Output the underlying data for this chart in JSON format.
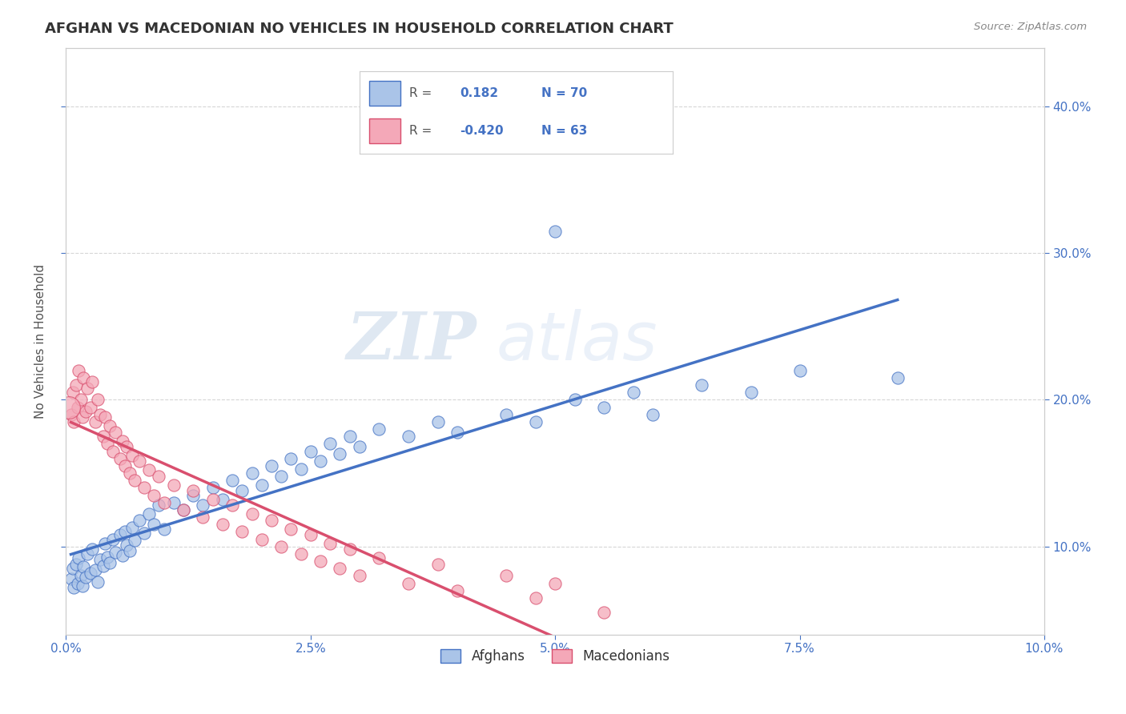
{
  "title": "AFGHAN VS MACEDONIAN NO VEHICLES IN HOUSEHOLD CORRELATION CHART",
  "source": "Source: ZipAtlas.com",
  "ylabel": "No Vehicles in Household",
  "xlim": [
    0.0,
    10.0
  ],
  "ylim": [
    4.0,
    44.0
  ],
  "afghan_color": "#aac4e8",
  "macedonian_color": "#f4a8b8",
  "afghan_line_color": "#4472c4",
  "macedonian_line_color": "#d94f6e",
  "legend_afghan_R": "0.182",
  "legend_afghan_N": "70",
  "legend_macedonian_R": "-0.420",
  "legend_macedonian_N": "63",
  "watermark_zip": "ZIP",
  "watermark_atlas": "atlas",
  "right_yticks": [
    10.0,
    20.0,
    30.0,
    40.0
  ],
  "afghan_data": [
    [
      0.05,
      7.8
    ],
    [
      0.07,
      8.5
    ],
    [
      0.08,
      7.2
    ],
    [
      0.1,
      8.8
    ],
    [
      0.12,
      7.5
    ],
    [
      0.13,
      9.2
    ],
    [
      0.15,
      8.0
    ],
    [
      0.17,
      7.3
    ],
    [
      0.18,
      8.6
    ],
    [
      0.2,
      7.9
    ],
    [
      0.22,
      9.5
    ],
    [
      0.25,
      8.2
    ],
    [
      0.27,
      9.8
    ],
    [
      0.3,
      8.4
    ],
    [
      0.32,
      7.6
    ],
    [
      0.35,
      9.1
    ],
    [
      0.38,
      8.7
    ],
    [
      0.4,
      10.2
    ],
    [
      0.42,
      9.3
    ],
    [
      0.45,
      8.9
    ],
    [
      0.48,
      10.5
    ],
    [
      0.5,
      9.6
    ],
    [
      0.55,
      10.8
    ],
    [
      0.58,
      9.4
    ],
    [
      0.6,
      11.0
    ],
    [
      0.62,
      10.1
    ],
    [
      0.65,
      9.7
    ],
    [
      0.68,
      11.3
    ],
    [
      0.7,
      10.4
    ],
    [
      0.75,
      11.8
    ],
    [
      0.8,
      10.9
    ],
    [
      0.85,
      12.2
    ],
    [
      0.9,
      11.5
    ],
    [
      0.95,
      12.8
    ],
    [
      1.0,
      11.2
    ],
    [
      1.1,
      13.0
    ],
    [
      1.2,
      12.5
    ],
    [
      1.3,
      13.5
    ],
    [
      1.4,
      12.8
    ],
    [
      1.5,
      14.0
    ],
    [
      1.6,
      13.2
    ],
    [
      1.7,
      14.5
    ],
    [
      1.8,
      13.8
    ],
    [
      1.9,
      15.0
    ],
    [
      2.0,
      14.2
    ],
    [
      2.1,
      15.5
    ],
    [
      2.2,
      14.8
    ],
    [
      2.3,
      16.0
    ],
    [
      2.4,
      15.3
    ],
    [
      2.5,
      16.5
    ],
    [
      2.6,
      15.8
    ],
    [
      2.7,
      17.0
    ],
    [
      2.8,
      16.3
    ],
    [
      2.9,
      17.5
    ],
    [
      3.0,
      16.8
    ],
    [
      3.2,
      18.0
    ],
    [
      3.5,
      17.5
    ],
    [
      3.8,
      18.5
    ],
    [
      4.0,
      17.8
    ],
    [
      5.0,
      31.5
    ],
    [
      4.5,
      19.0
    ],
    [
      4.8,
      18.5
    ],
    [
      5.2,
      20.0
    ],
    [
      5.5,
      19.5
    ],
    [
      5.8,
      20.5
    ],
    [
      6.0,
      19.0
    ],
    [
      6.5,
      21.0
    ],
    [
      7.0,
      20.5
    ],
    [
      7.5,
      22.0
    ],
    [
      8.5,
      21.5
    ]
  ],
  "macedonian_data": [
    [
      0.05,
      19.0
    ],
    [
      0.07,
      20.5
    ],
    [
      0.08,
      18.5
    ],
    [
      0.1,
      21.0
    ],
    [
      0.12,
      19.5
    ],
    [
      0.13,
      22.0
    ],
    [
      0.15,
      20.0
    ],
    [
      0.17,
      18.8
    ],
    [
      0.18,
      21.5
    ],
    [
      0.2,
      19.2
    ],
    [
      0.22,
      20.8
    ],
    [
      0.25,
      19.5
    ],
    [
      0.27,
      21.2
    ],
    [
      0.3,
      18.5
    ],
    [
      0.32,
      20.0
    ],
    [
      0.35,
      19.0
    ],
    [
      0.38,
      17.5
    ],
    [
      0.4,
      18.8
    ],
    [
      0.42,
      17.0
    ],
    [
      0.45,
      18.2
    ],
    [
      0.48,
      16.5
    ],
    [
      0.5,
      17.8
    ],
    [
      0.55,
      16.0
    ],
    [
      0.58,
      17.2
    ],
    [
      0.6,
      15.5
    ],
    [
      0.62,
      16.8
    ],
    [
      0.65,
      15.0
    ],
    [
      0.68,
      16.2
    ],
    [
      0.7,
      14.5
    ],
    [
      0.75,
      15.8
    ],
    [
      0.8,
      14.0
    ],
    [
      0.85,
      15.2
    ],
    [
      0.9,
      13.5
    ],
    [
      0.95,
      14.8
    ],
    [
      1.0,
      13.0
    ],
    [
      1.1,
      14.2
    ],
    [
      1.2,
      12.5
    ],
    [
      1.3,
      13.8
    ],
    [
      1.4,
      12.0
    ],
    [
      1.5,
      13.2
    ],
    [
      1.6,
      11.5
    ],
    [
      1.7,
      12.8
    ],
    [
      1.8,
      11.0
    ],
    [
      1.9,
      12.2
    ],
    [
      2.0,
      10.5
    ],
    [
      2.1,
      11.8
    ],
    [
      2.2,
      10.0
    ],
    [
      2.3,
      11.2
    ],
    [
      2.4,
      9.5
    ],
    [
      2.5,
      10.8
    ],
    [
      2.6,
      9.0
    ],
    [
      2.7,
      10.2
    ],
    [
      2.8,
      8.5
    ],
    [
      2.9,
      9.8
    ],
    [
      3.0,
      8.0
    ],
    [
      3.2,
      9.2
    ],
    [
      3.5,
      7.5
    ],
    [
      3.8,
      8.8
    ],
    [
      4.0,
      7.0
    ],
    [
      4.5,
      8.0
    ],
    [
      4.8,
      6.5
    ],
    [
      5.0,
      7.5
    ],
    [
      5.5,
      5.5
    ]
  ]
}
